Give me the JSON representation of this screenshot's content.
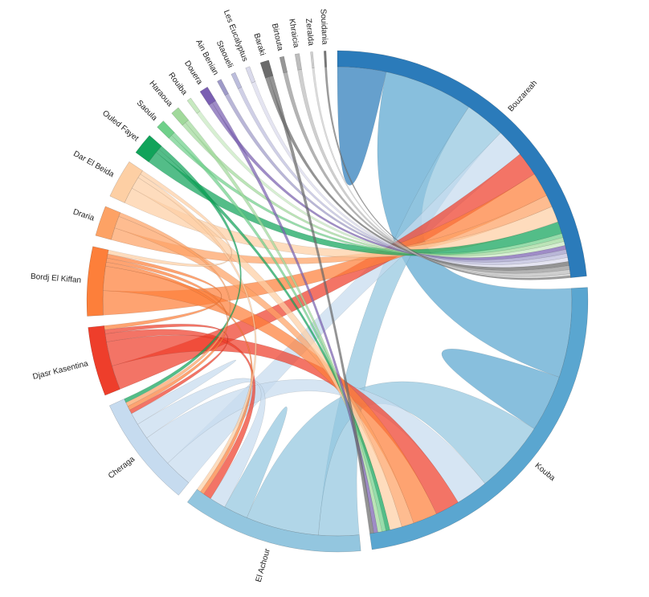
{
  "chart_data": {
    "type": "chord",
    "groups": [
      {
        "name": "Bouzareah",
        "color": "#2b7bba"
      },
      {
        "name": "Kouba",
        "color": "#5aa6d0"
      },
      {
        "name": "El Achour",
        "color": "#93c6df"
      },
      {
        "name": "Cheraga",
        "color": "#c6dbef"
      },
      {
        "name": "Djasr Kasentina",
        "color": "#ee3e2b"
      },
      {
        "name": "Bordj El Kiffan",
        "color": "#fd7f3a"
      },
      {
        "name": "Draria",
        "color": "#fda265"
      },
      {
        "name": "Dar El Beida",
        "color": "#fdcfa4"
      },
      {
        "name": "Ouled Fayet",
        "color": "#11a35a"
      },
      {
        "name": "Saoula",
        "color": "#6fd08a"
      },
      {
        "name": "Haraoua",
        "color": "#a1d99b"
      },
      {
        "name": "Rouiba",
        "color": "#c7e9c0"
      },
      {
        "name": "Douera",
        "color": "#7a5fb2"
      },
      {
        "name": "Ain Benian",
        "color": "#9e9ac8"
      },
      {
        "name": "Staoueli",
        "color": "#bcbddc"
      },
      {
        "name": "Les Eucalyptus",
        "color": "#dadaeb"
      },
      {
        "name": "Baraki",
        "color": "#6b6b6b"
      },
      {
        "name": "Birtouta",
        "color": "#969696"
      },
      {
        "name": "Khraicia",
        "color": "#bdbdbd"
      },
      {
        "name": "Zeralda",
        "color": "#d0d0d0"
      },
      {
        "name": "Souidania",
        "color": "#777777"
      }
    ],
    "flows": [
      {
        "source": "Bouzareah",
        "target": "Bouzareah",
        "value": 12
      },
      {
        "source": "Bouzareah",
        "target": "Kouba",
        "value": 22
      },
      {
        "source": "Bouzareah",
        "target": "El Achour",
        "value": 10
      },
      {
        "source": "Bouzareah",
        "target": "Cheraga",
        "value": 7
      },
      {
        "source": "Bouzareah",
        "target": "Djasr Kasentina",
        "value": 6
      },
      {
        "source": "Bouzareah",
        "target": "Bordj El Kiffan",
        "value": 6
      },
      {
        "source": "Bouzareah",
        "target": "Draria",
        "value": 3
      },
      {
        "source": "Bouzareah",
        "target": "Dar El Beida",
        "value": 4
      },
      {
        "source": "Bouzareah",
        "target": "Ouled Fayet",
        "value": 3
      },
      {
        "source": "Bouzareah",
        "target": "Saoula",
        "value": 1
      },
      {
        "source": "Bouzareah",
        "target": "Haraoua",
        "value": 1
      },
      {
        "source": "Bouzareah",
        "target": "Rouiba",
        "value": 1
      },
      {
        "source": "Bouzareah",
        "target": "Douera",
        "value": 1
      },
      {
        "source": "Bouzareah",
        "target": "Ain Benian",
        "value": 1
      },
      {
        "source": "Bouzareah",
        "target": "Staoueli",
        "value": 1
      },
      {
        "source": "Bouzareah",
        "target": "Les Eucalyptus",
        "value": 1
      },
      {
        "source": "Bouzareah",
        "target": "Baraki",
        "value": 1
      },
      {
        "source": "Bouzareah",
        "target": "Birtouta",
        "value": 1
      },
      {
        "source": "Bouzareah",
        "target": "Khraicia",
        "value": 1
      },
      {
        "source": "Bouzareah",
        "target": "Zeralda",
        "value": 0.5
      },
      {
        "source": "Bouzareah",
        "target": "Souidania",
        "value": 0.5
      },
      {
        "source": "Kouba",
        "target": "Kouba",
        "value": 14
      },
      {
        "source": "Kouba",
        "target": "El Achour",
        "value": 18
      },
      {
        "source": "Kouba",
        "target": "Cheraga",
        "value": 8
      },
      {
        "source": "Kouba",
        "target": "Djasr Kasentina",
        "value": 6
      },
      {
        "source": "Kouba",
        "target": "Bordj El Kiffan",
        "value": 6
      },
      {
        "source": "Kouba",
        "target": "Draria",
        "value": 3
      },
      {
        "source": "Kouba",
        "target": "Dar El Beida",
        "value": 3
      },
      {
        "source": "Kouba",
        "target": "Ouled Fayet",
        "value": 1
      },
      {
        "source": "Kouba",
        "target": "Saoula",
        "value": 1
      },
      {
        "source": "Kouba",
        "target": "Haraoua",
        "value": 1
      },
      {
        "source": "Kouba",
        "target": "Douera",
        "value": 1
      },
      {
        "source": "Kouba",
        "target": "Baraki",
        "value": 1
      },
      {
        "source": "El Achour",
        "target": "El Achour",
        "value": 6
      },
      {
        "source": "El Achour",
        "target": "Cheraga",
        "value": 4
      },
      {
        "source": "El Achour",
        "target": "Djasr Kasentina",
        "value": 2
      },
      {
        "source": "El Achour",
        "target": "Bordj El Kiffan",
        "value": 1
      },
      {
        "source": "El Achour",
        "target": "Dar El Beida",
        "value": 1
      },
      {
        "source": "Cheraga",
        "target": "Cheraga",
        "value": 3
      },
      {
        "source": "Cheraga",
        "target": "Djasr Kasentina",
        "value": 1
      },
      {
        "source": "Cheraga",
        "target": "Bordj El Kiffan",
        "value": 1
      },
      {
        "source": "Cheraga",
        "target": "Ouled Fayet",
        "value": 1
      },
      {
        "source": "Cheraga",
        "target": "Draria",
        "value": 1
      },
      {
        "source": "Djasr Kasentina",
        "target": "Bordj El Kiffan",
        "value": 1
      },
      {
        "source": "Bordj El Kiffan",
        "target": "Dar El Beida",
        "value": 1
      }
    ]
  }
}
